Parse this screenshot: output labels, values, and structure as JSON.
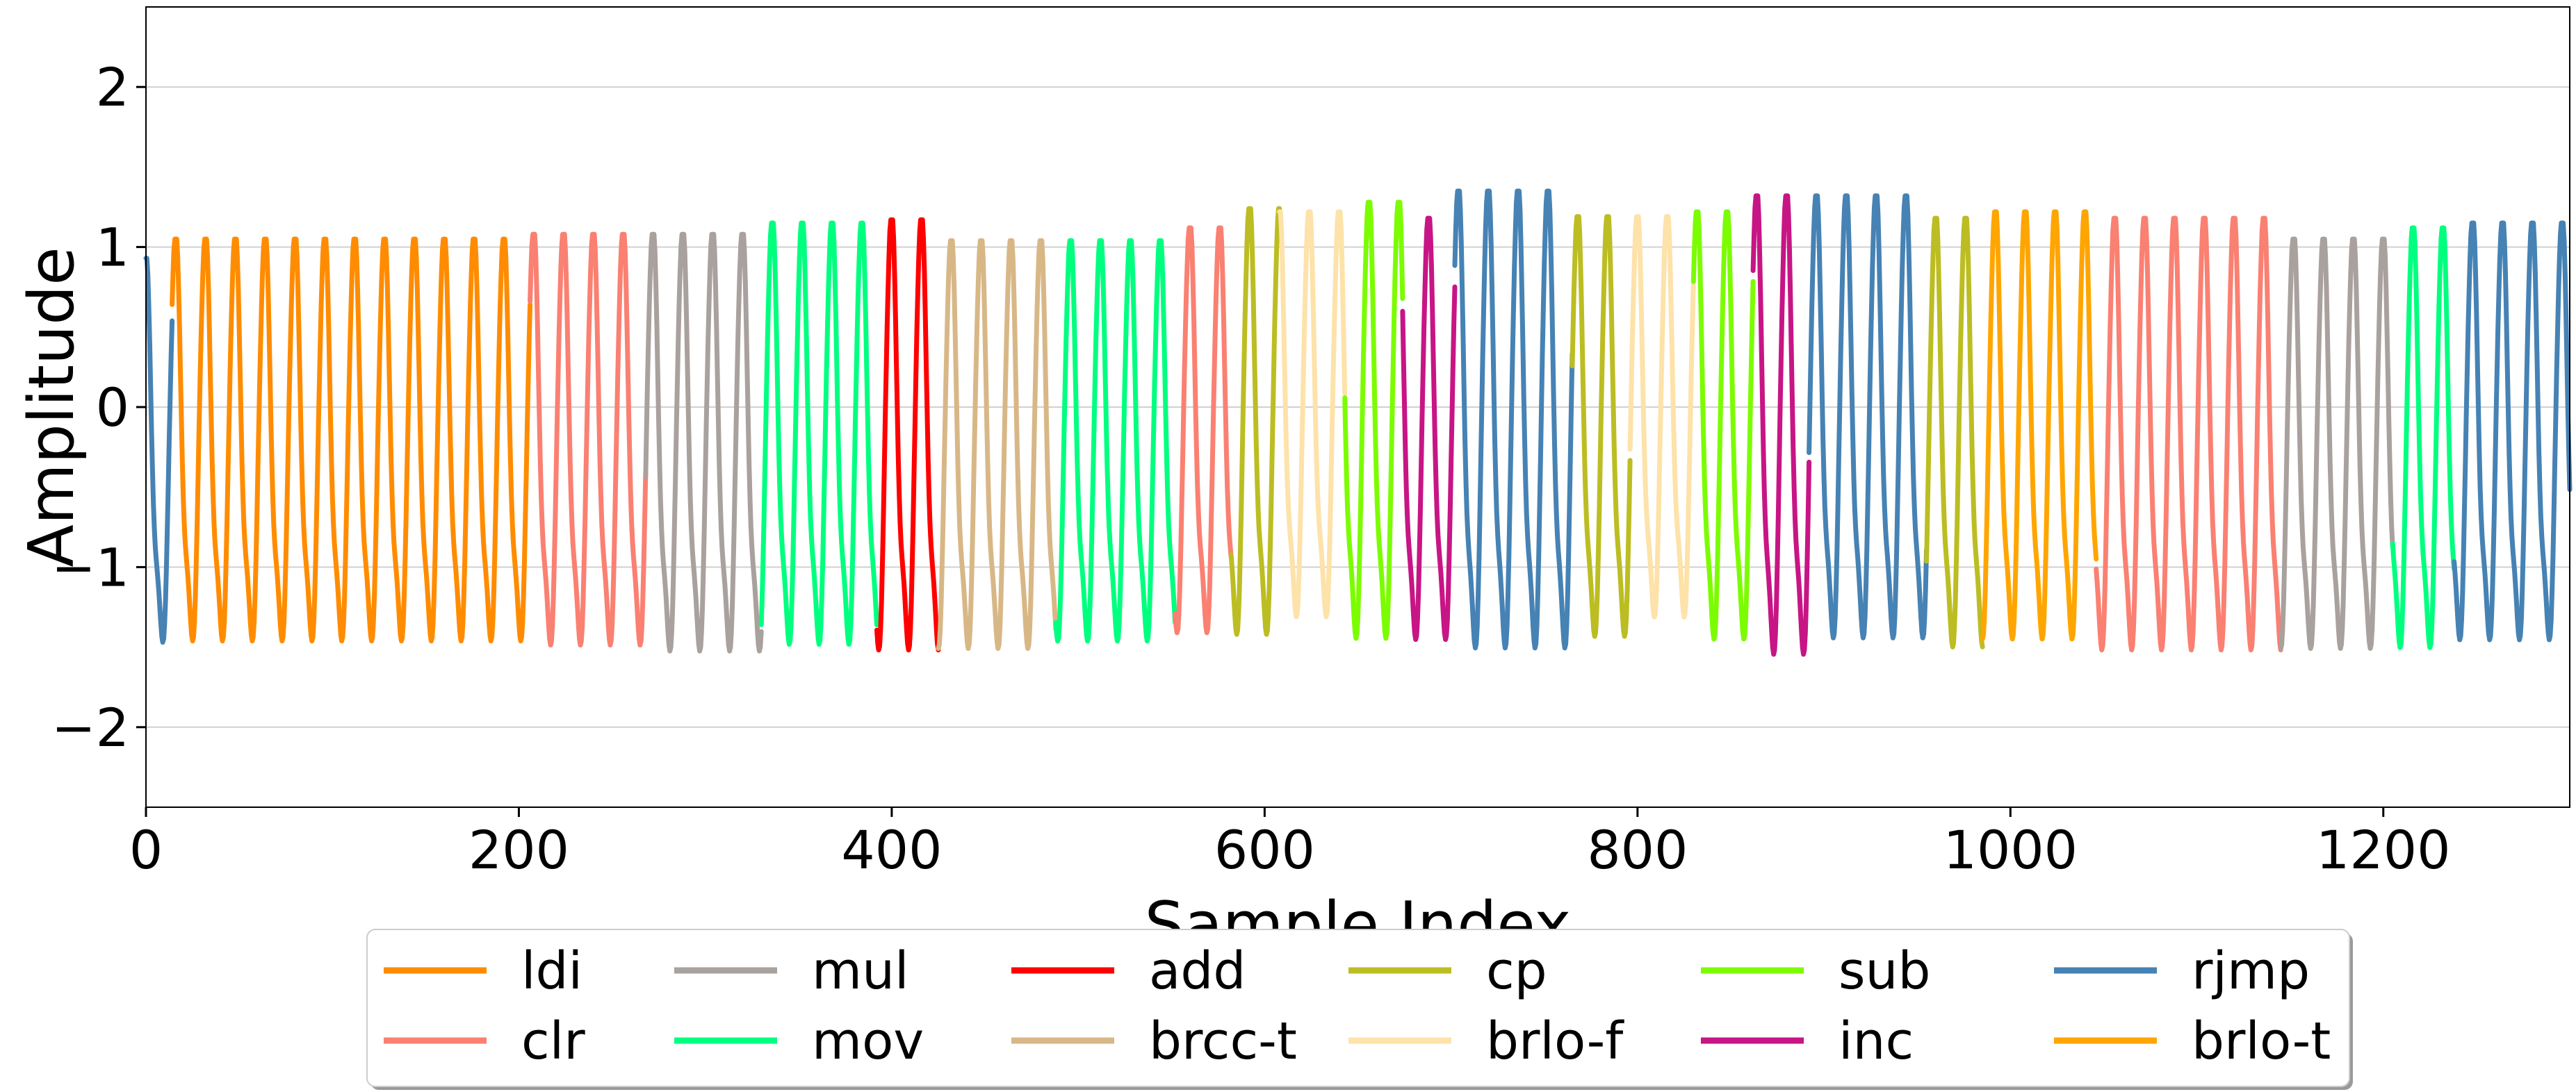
{
  "chart_data": {
    "type": "line",
    "xlabel": "Sample Index",
    "ylabel": "Amplitude",
    "xlim": [
      0,
      1300
    ],
    "ylim": [
      -2.5,
      2.5
    ],
    "xticks": [
      0,
      200,
      400,
      600,
      800,
      1000,
      1200
    ],
    "yticks": [
      -2,
      -1,
      0,
      1,
      2
    ],
    "ytick_labels": [
      "−2",
      "−1",
      "0",
      "1",
      "2"
    ],
    "grid": "horizontal",
    "legend": {
      "placement": "bottom-center",
      "columns": 6
    },
    "oscillation_period": 16,
    "segments": [
      {
        "label": "rjmp",
        "x": [
          0,
          14
        ],
        "max": 0.93,
        "min": -1.65
      },
      {
        "label": "ldi",
        "x": [
          14,
          206
        ],
        "max": 1.05,
        "min": -1.65
      },
      {
        "label": "clr",
        "x": [
          206,
          268
        ],
        "max": 1.08,
        "min": -1.68
      },
      {
        "label": "mul",
        "x": [
          268,
          330
        ],
        "max": 1.08,
        "min": -1.72
      },
      {
        "label": "mov",
        "x": [
          330,
          392
        ],
        "max": 1.15,
        "min": -1.68
      },
      {
        "label": "add",
        "x": [
          392,
          425
        ],
        "max": 1.17,
        "min": -1.72
      },
      {
        "label": "brcc-t",
        "x": [
          425,
          488
        ],
        "max": 1.04,
        "min": -1.7
      },
      {
        "label": "mov",
        "x": [
          488,
          552
        ],
        "max": 1.04,
        "min": -1.65
      },
      {
        "label": "clr",
        "x": [
          552,
          582
        ],
        "max": 1.12,
        "min": -1.6
      },
      {
        "label": "cp",
        "x": [
          582,
          608
        ],
        "max": 1.24,
        "min": -1.62
      },
      {
        "label": "brlo-f",
        "x": [
          608,
          643
        ],
        "max": 1.22,
        "min": -1.5
      },
      {
        "label": "sub",
        "x": [
          643,
          674
        ],
        "max": 1.28,
        "min": -1.65
      },
      {
        "label": "inc",
        "x": [
          674,
          702
        ],
        "max": 1.18,
        "min": -1.65
      },
      {
        "label": "rjmp",
        "x": [
          702,
          765
        ],
        "max": 1.35,
        "min": -1.72
      },
      {
        "label": "cp",
        "x": [
          765,
          796
        ],
        "max": 1.19,
        "min": -1.63
      },
      {
        "label": "brlo-f",
        "x": [
          796,
          830
        ],
        "max": 1.19,
        "min": -1.5
      },
      {
        "label": "sub",
        "x": [
          830,
          862
        ],
        "max": 1.22,
        "min": -1.65
      },
      {
        "label": "inc",
        "x": [
          862,
          892
        ],
        "max": 1.32,
        "min": -1.76
      },
      {
        "label": "rjmp",
        "x": [
          892,
          955
        ],
        "max": 1.32,
        "min": -1.65
      },
      {
        "label": "cp",
        "x": [
          955,
          985
        ],
        "max": 1.18,
        "min": -1.7
      },
      {
        "label": "brlo-t",
        "x": [
          985,
          1046
        ],
        "max": 1.22,
        "min": -1.65
      },
      {
        "label": "clr",
        "x": [
          1046,
          1145
        ],
        "max": 1.18,
        "min": -1.72
      },
      {
        "label": "mul",
        "x": [
          1145,
          1205
        ],
        "max": 1.05,
        "min": -1.7
      },
      {
        "label": "mov",
        "x": [
          1205,
          1238
        ],
        "max": 1.12,
        "min": -1.7
      },
      {
        "label": "rjmp",
        "x": [
          1238,
          1300
        ],
        "max": 1.15,
        "min": -1.65
      }
    ],
    "series": [
      {
        "name": "ldi",
        "color": "#ff8c00"
      },
      {
        "name": "clr",
        "color": "#fa8072"
      },
      {
        "name": "mul",
        "color": "#a9a19d"
      },
      {
        "name": "mov",
        "color": "#00ff7f"
      },
      {
        "name": "add",
        "color": "#ff0000"
      },
      {
        "name": "brcc-t",
        "color": "#d8b787"
      },
      {
        "name": "cp",
        "color": "#bcbd22"
      },
      {
        "name": "brlo-f",
        "color": "#fde2a9"
      },
      {
        "name": "sub",
        "color": "#7cfc00"
      },
      {
        "name": "inc",
        "color": "#c71585"
      },
      {
        "name": "rjmp",
        "color": "#4682b4"
      },
      {
        "name": "brlo-t",
        "color": "#ffa500"
      }
    ]
  }
}
